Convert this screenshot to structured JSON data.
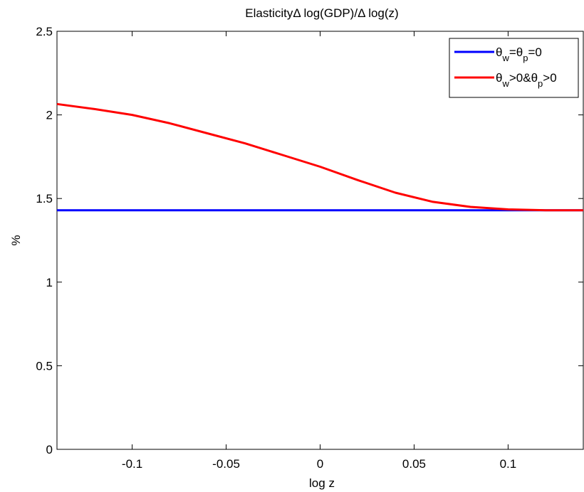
{
  "chart_data": {
    "type": "line",
    "title": "ElasticityΔ log(GDP)/Δ log(z)",
    "xlabel": "log z",
    "ylabel": "%",
    "xlim": [
      -0.14,
      0.14
    ],
    "ylim": [
      0,
      2.5
    ],
    "xticks": [
      -0.1,
      -0.05,
      0,
      0.05,
      0.1
    ],
    "xtick_labels": [
      "-0.1",
      "-0.05",
      "0",
      "0.05",
      "0.1"
    ],
    "yticks": [
      0,
      0.5,
      1,
      1.5,
      2,
      2.5
    ],
    "ytick_labels": [
      "0",
      "0.5",
      "1",
      "1.5",
      "2",
      "2.5"
    ],
    "grid": false,
    "legend_position": "top-right",
    "series": [
      {
        "name": "θw=θp=0",
        "legend": {
          "base1": "θ",
          "sub1": "w",
          "mid": "=θ",
          "sub2": "p",
          "tail": "=0"
        },
        "color": "#0000ff",
        "x": [
          -0.14,
          0.14
        ],
        "y": [
          1.43,
          1.43
        ]
      },
      {
        "name": "θw>0&θp>0",
        "legend": {
          "base1": "θ",
          "sub1": "w",
          "mid": ">0&θ",
          "sub2": "p",
          "tail": ">0"
        },
        "color": "#ff0000",
        "x": [
          -0.14,
          -0.12,
          -0.1,
          -0.08,
          -0.06,
          -0.04,
          -0.02,
          0.0,
          0.02,
          0.04,
          0.06,
          0.08,
          0.1,
          0.12,
          0.14
        ],
        "y": [
          2.065,
          2.035,
          2.0,
          1.95,
          1.89,
          1.83,
          1.76,
          1.69,
          1.61,
          1.535,
          1.48,
          1.45,
          1.435,
          1.43,
          1.43
        ]
      }
    ]
  }
}
